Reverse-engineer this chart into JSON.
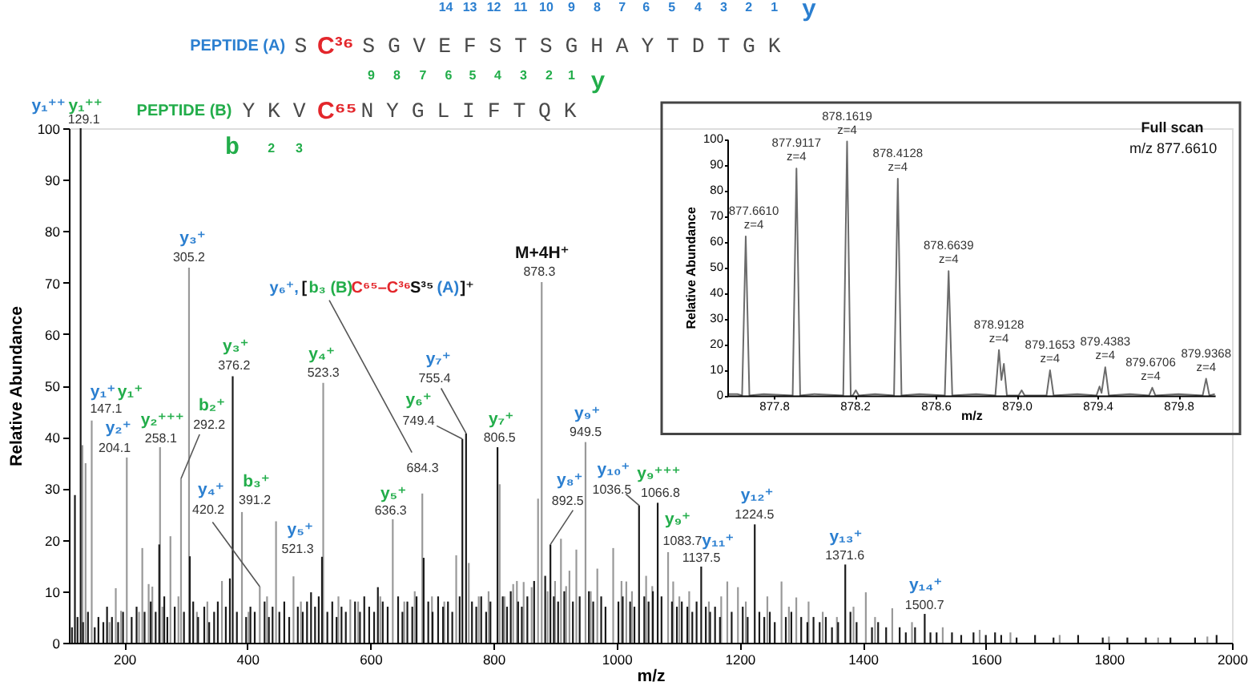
{
  "chart_data": [
    {
      "type": "bar",
      "xlabel": "m/z",
      "ylabel": "Relative Abundance",
      "xlim": [
        110,
        2000
      ],
      "xticks": [
        200,
        400,
        600,
        800,
        1000,
        1200,
        1400,
        1600,
        1800,
        2000
      ],
      "ylim": [
        0,
        100
      ],
      "yticks": [
        0,
        10,
        20,
        30,
        40,
        50,
        60,
        70,
        80,
        90,
        100
      ],
      "series": [
        {
          "color": "#999999",
          "x": [
            132,
            137.1,
            147.1,
            176,
            186.2,
            194.8,
            204.1,
            224,
            229.3,
            239.6,
            245.6,
            258.1,
            262,
            275,
            288,
            292.2,
            305.2,
            318,
            335,
            358.7,
            391.2,
            402,
            420.2,
            432,
            446.6,
            475,
            487,
            523.3,
            548,
            567.3,
            580,
            616,
            636.3,
            655,
            672,
            684.3,
            700,
            720,
            739.4,
            759.8,
            776,
            792,
            810,
            818,
            832,
            838,
            849,
            862,
            872.4,
            878.3,
            888,
            900,
            909.6,
            918,
            923.4,
            934.6,
            949.5,
            958,
            968.7,
            994.5,
            1008,
            1015.8,
            1025,
            1048,
            1058,
            1083.7,
            1092,
            1102,
            1118,
            1150,
            1170,
            1179.9,
            1197.2,
            1210,
            1245,
            1268,
            1280,
            1292,
            1312,
            1335,
            1358,
            1385,
            1405,
            1420,
            1448,
            1480,
            1530,
            1590,
            1640,
            1720,
            1800,
            1880,
            1960
          ],
          "values": [
            38.4,
            34.9,
            43.2,
            4,
            10.6,
            6.2,
            36,
            6,
            18.4,
            11.4,
            10.9,
            38,
            7,
            20.7,
            9,
            31.9,
            72.9,
            6,
            8,
            12,
            25.4,
            6,
            10.9,
            9,
            23.6,
            12.9,
            8,
            50.5,
            9,
            8.4,
            8,
            9,
            24,
            8,
            10,
            29,
            9,
            8,
            17,
            15.5,
            9,
            10,
            30.8,
            9,
            11.4,
            12,
            11.8,
            10.8,
            28,
            70.1,
            10,
            12,
            20.2,
            11,
            14,
            18.1,
            39,
            10,
            14.4,
            18.4,
            12,
            11.9,
            10,
            13,
            11,
            17.6,
            11.9,
            9,
            10,
            8,
            9,
            11.9,
            10.8,
            8,
            9,
            11.9,
            7,
            8.8,
            8,
            6,
            5,
            7,
            9.8,
            5,
            6.7,
            4,
            3,
            2.5,
            2,
            1.5,
            1.2,
            1,
            1.2
          ]
        },
        {
          "color": "#1a1a1a",
          "x": [
            115,
            119.8,
            124,
            129.1,
            133,
            141,
            152,
            158,
            166,
            172,
            180,
            190,
            198,
            212,
            220,
            233,
            243,
            251,
            256.8,
            265,
            270,
            282,
            297,
            306.5,
            312,
            320,
            330,
            338,
            346,
            352,
            365,
            371.6,
            376.2,
            383,
            398,
            405,
            412,
            428,
            435,
            441,
            452,
            460,
            468,
            482,
            490,
            497,
            503.5,
            510,
            516,
            521.3,
            530,
            538,
            545,
            553,
            560,
            575,
            583,
            590,
            598,
            606,
            612.1,
            620,
            628,
            645,
            652,
            660,
            668,
            675,
            686.5,
            694,
            701,
            710,
            718,
            726,
            733,
            745,
            749.4,
            755.4,
            765,
            772,
            780,
            788,
            795,
            806.5,
            815,
            822,
            828,
            840,
            846,
            855,
            866,
            884,
            892.5,
            898,
            905,
            915,
            929,
            940,
            955,
            962,
            975,
            982,
            1003,
            1010,
            1022,
            1029,
            1036.5,
            1045,
            1052,
            1059,
            1066.8,
            1073,
            1090,
            1098,
            1106,
            1115,
            1123,
            1130,
            1137.5,
            1145,
            1152,
            1160,
            1168,
            1187,
            1205,
            1213,
            1224.5,
            1232,
            1240,
            1249,
            1257,
            1275,
            1284,
            1300,
            1310,
            1320,
            1330,
            1340,
            1350,
            1360,
            1371.6,
            1380,
            1390,
            1415,
            1425,
            1438,
            1460,
            1470,
            1485,
            1500.7,
            1510,
            1520,
            1545,
            1560,
            1580,
            1600,
            1615,
            1625,
            1650,
            1680,
            1710,
            1750,
            1790,
            1830,
            1860,
            1900,
            1940,
            1975
          ],
          "values": [
            3,
            28.7,
            5,
            100,
            4,
            6,
            3,
            5,
            4,
            7,
            5,
            4,
            6,
            5,
            7,
            6,
            8,
            6,
            19.1,
            9,
            5,
            7,
            6,
            16.8,
            8,
            5,
            7,
            4,
            6,
            8,
            7,
            12.5,
            51.8,
            6,
            5,
            7,
            6,
            8,
            5,
            7,
            6,
            8,
            5,
            7,
            6,
            8,
            9.8,
            7,
            9,
            16.7,
            6,
            8,
            5,
            7,
            6,
            8,
            6,
            9,
            7,
            6,
            10.8,
            8,
            7,
            9,
            6,
            8,
            7,
            9,
            16.5,
            8,
            6,
            9,
            7,
            8,
            6,
            9,
            39.6,
            40.7,
            8,
            7,
            9,
            6,
            8,
            38,
            9,
            7,
            10,
            8,
            7,
            9,
            12,
            13,
            19.1,
            9,
            8,
            10,
            8,
            9,
            10,
            8,
            9,
            7,
            8,
            9,
            8,
            7,
            26.7,
            9,
            8,
            10,
            27.2,
            9,
            8,
            7,
            8,
            7,
            6,
            8,
            14.8,
            7,
            6,
            7,
            5,
            6,
            7,
            5,
            23,
            6,
            5,
            6,
            4,
            5,
            6,
            5,
            4,
            5,
            4,
            5,
            3,
            4,
            15.2,
            6,
            4,
            3,
            4,
            3,
            3,
            2,
            3,
            5.6,
            2,
            2,
            2,
            1.5,
            2,
            1.5,
            2,
            1.5,
            1,
            1.5,
            1,
            1.5,
            1,
            1,
            1,
            1,
            1,
            1.5
          ]
        }
      ],
      "annotations": [
        {
          "text": "y₁⁺⁺",
          "x": 129.1,
          "y": 100
        },
        {
          "text": "y₁⁺⁺",
          "x": 129.1,
          "y": 100
        },
        {
          "text": "129.1",
          "x": 129.1,
          "y": 100
        },
        {
          "text": "y₁⁺",
          "x": 147.1,
          "y": 43.2
        },
        {
          "text": "y₁⁺",
          "x": 147.1,
          "y": 43.2
        },
        {
          "text": "147.1",
          "x": 147.1,
          "y": 43.2
        },
        {
          "text": "y₂⁺",
          "x": 204.1,
          "y": 36
        },
        {
          "text": "204.1",
          "x": 204.1,
          "y": 36
        },
        {
          "text": "y₂⁺⁺⁺",
          "x": 258.1,
          "y": 38
        },
        {
          "text": "258.1",
          "x": 258.1,
          "y": 38
        },
        {
          "text": "b₂⁺",
          "x": 292.2,
          "y": 31.9
        },
        {
          "text": "292.2",
          "x": 292.2,
          "y": 31.9
        },
        {
          "text": "y₃⁺",
          "x": 305.2,
          "y": 72.9
        },
        {
          "text": "305.2",
          "x": 305.2,
          "y": 72.9
        },
        {
          "text": "y₃⁺",
          "x": 376.2,
          "y": 51.8
        },
        {
          "text": "376.2",
          "x": 376.2,
          "y": 51.8
        },
        {
          "text": "b₃⁺",
          "x": 391.2,
          "y": 25.4
        },
        {
          "text": "391.2",
          "x": 391.2,
          "y": 25.4
        },
        "y₄⁺",
        {
          "text": "420.2",
          "x": 420.2,
          "y": 10.9
        },
        {
          "text": "y₅⁺",
          "x": 521.3,
          "y": 16.7
        },
        {
          "text": "521.3",
          "x": 521.3,
          "y": 16.7
        },
        {
          "text": "y₄⁺",
          "x": 523.3,
          "y": 50.5
        },
        {
          "text": "523.3",
          "x": 523.3,
          "y": 50.5
        },
        {
          "text": "y₅⁺",
          "x": 636.3,
          "y": 24
        },
        {
          "text": "636.3",
          "x": 636.3,
          "y": 24
        },
        "y₆⁺,",
        "[",
        "b₃ (B)",
        "C⁶⁵–C³⁶",
        "S³⁵",
        "(A)",
        "]⁺",
        {
          "text": "684.3",
          "x": 684.3,
          "y": 29
        },
        {
          "text": "y₆⁺",
          "x": 749.4,
          "y": 39.6
        },
        {
          "text": "749.4",
          "x": 749.4,
          "y": 39.6
        },
        {
          "text": "y₇⁺",
          "x": 755.4,
          "y": 40.7
        },
        {
          "text": "755.4",
          "x": 755.4,
          "y": 40.7
        },
        {
          "text": "y₇⁺",
          "x": 806.5,
          "y": 38
        },
        {
          "text": "806.5",
          "x": 806.5,
          "y": 38
        },
        {
          "text": "M+4H⁺",
          "x": 878.3,
          "y": 70.1
        },
        {
          "text": "878.3",
          "x": 878.3,
          "y": 70.1
        },
        {
          "text": "y₈⁺",
          "x": 892.5,
          "y": 19.1
        },
        {
          "text": "892.5",
          "x": 892.5,
          "y": 19.1
        },
        {
          "text": "y₉⁺",
          "x": 949.5,
          "y": 39
        },
        {
          "text": "949.5",
          "x": 949.5,
          "y": 39
        },
        {
          "text": "y₁₀⁺",
          "x": 1036.5,
          "y": 26.7
        },
        {
          "text": "1036.5",
          "x": 1036.5,
          "y": 26.7
        },
        {
          "text": "y₉⁺⁺⁺",
          "x": 1066.8,
          "y": 27.2
        },
        {
          "text": "1066.8",
          "x": 1066.8,
          "y": 27.2
        },
        {
          "text": "y₉⁺",
          "x": 1083.7,
          "y": 17.6
        },
        {
          "text": "1083.7",
          "x": 1083.7,
          "y": 17.6
        },
        {
          "text": "y₁₁⁺",
          "x": 1137.5,
          "y": 14.8
        },
        {
          "text": "1137.5",
          "x": 1137.5,
          "y": 14.8
        },
        {
          "text": "y₁₂⁺",
          "x": 1224.5,
          "y": 23
        },
        {
          "text": "1224.5",
          "x": 1224.5,
          "y": 23
        },
        {
          "text": "y₁₃⁺",
          "x": 1371.6,
          "y": 15.2
        },
        {
          "text": "1371.6",
          "x": 1371.6,
          "y": 15.2
        },
        {
          "text": "y₁₄⁺",
          "x": 1500.7,
          "y": 5.6
        },
        {
          "text": "1500.7",
          "x": 1500.7,
          "y": 5.6
        },
        "PEPTIDE (A)",
        "S",
        "C³⁶",
        "S G V E F S T S G H A Y T D T G K",
        "14",
        "13",
        "12",
        "11",
        "10",
        "9",
        "8",
        "7",
        "6",
        "5",
        "4",
        "3",
        "2",
        "1",
        "y",
        "PEPTIDE (B)",
        "Y K V",
        "C⁶⁵",
        "N Y G L I F T Q K",
        "9",
        "8",
        "7",
        "6",
        "5",
        "4",
        "3",
        "2",
        "1",
        "y",
        "b",
        "2",
        "3"
      ]
    },
    {
      "type": "line",
      "title": "Full scan",
      "subtitle": "m/z 877.6610",
      "xlabel": "m/z",
      "ylabel": "Relative Abundance",
      "xlim": [
        877.57,
        879.98
      ],
      "xticks": [
        877.8,
        878.2,
        878.6,
        {
          "value": 879.0,
          "label": "879.0"
        },
        879.4,
        879.8
      ],
      "ylim": [
        0,
        100
      ],
      "yticks": [
        0,
        10,
        20,
        30,
        40,
        50,
        60,
        70,
        80,
        90,
        100
      ],
      "color": "#6b6b6b",
      "x": [
        877.57,
        877.62,
        877.643,
        877.661,
        877.679,
        877.75,
        877.893,
        877.9117,
        877.93,
        878.0,
        878.143,
        878.1619,
        878.18,
        878.19,
        878.205,
        878.22,
        878.3,
        878.394,
        878.4128,
        878.431,
        878.52,
        878.645,
        878.6639,
        878.682,
        878.8,
        878.895,
        878.9128,
        878.925,
        878.937,
        878.952,
        879.01,
        879.025,
        879.04,
        879.148,
        879.1653,
        879.183,
        879.3,
        879.395,
        879.41,
        879.42,
        879.4383,
        879.456,
        879.56,
        879.655,
        879.6706,
        879.686,
        879.8,
        879.92,
        879.9368,
        879.953,
        879.98
      ],
      "values": [
        0.5,
        0.5,
        0,
        62,
        0,
        0.5,
        0,
        88.5,
        0,
        0.5,
        0,
        99,
        0,
        0,
        2,
        0,
        0.5,
        0,
        84.5,
        0,
        0.5,
        0,
        48.5,
        0,
        0.5,
        0,
        17.7,
        6,
        12.3,
        0,
        0,
        2,
        0,
        0,
        9.8,
        0,
        0.5,
        0,
        3.5,
        1,
        11,
        0,
        0.5,
        0,
        3,
        0,
        0.5,
        0,
        6.5,
        0,
        0.5
      ],
      "annotations": [
        {
          "text": "877.6610\nz=4",
          "x": 877.661,
          "y": 62
        },
        {
          "text": "877.9117\nz=4",
          "x": 877.9117,
          "y": 88.5
        },
        {
          "text": "878.1619\nz=4",
          "x": 878.1619,
          "y": 99
        },
        {
          "text": "878.4128\nz=4",
          "x": 878.4128,
          "y": 84.5
        },
        {
          "text": "878.6639\nz=4",
          "x": 878.6639,
          "y": 48.5
        },
        {
          "text": "878.9128\nz=4",
          "x": 878.9128,
          "y": 17.7
        },
        {
          "text": "879.1653\nz=4",
          "x": 879.1653,
          "y": 9.8
        },
        {
          "text": "879.4383\nz=4",
          "x": 879.4383,
          "y": 11
        },
        {
          "text": "879.6706\nz=4",
          "x": 879.6706,
          "y": 3
        },
        {
          "text": "879.9368\nz=4",
          "x": 879.9368,
          "y": 6.5
        }
      ]
    }
  ]
}
